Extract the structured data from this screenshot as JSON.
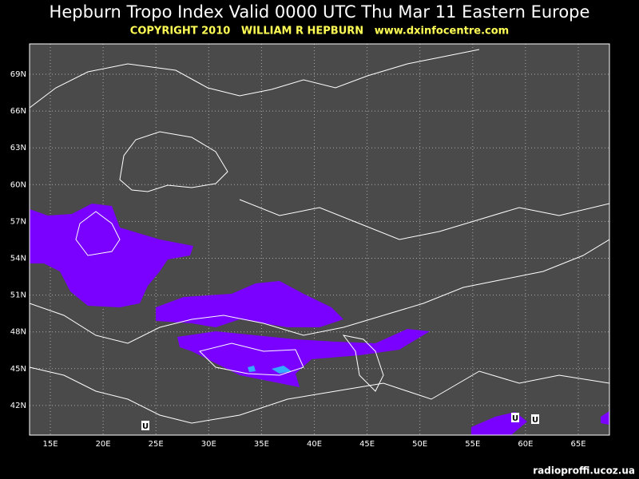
{
  "header": {
    "title": "Hepburn Tropo Index Valid 0000 UTC Thu Mar 11 Eastern Europe",
    "copyright": "COPYRIGHT 2010   WILLIAM R HEPBURN   www.dxinfocentre.com"
  },
  "map": {
    "lat_labels": [
      "69N",
      "66N",
      "63N",
      "60N",
      "57N",
      "54N",
      "51N",
      "48N",
      "45N",
      "42N"
    ],
    "lon_labels": [
      "15E",
      "20E",
      "25E",
      "30E",
      "35E",
      "40E",
      "45E",
      "50E",
      "55E",
      "60E",
      "65E"
    ],
    "markers": [
      "U",
      "U",
      "U"
    ]
  },
  "footer": {
    "watermark": "radioproffi.ucoz.ua"
  }
}
